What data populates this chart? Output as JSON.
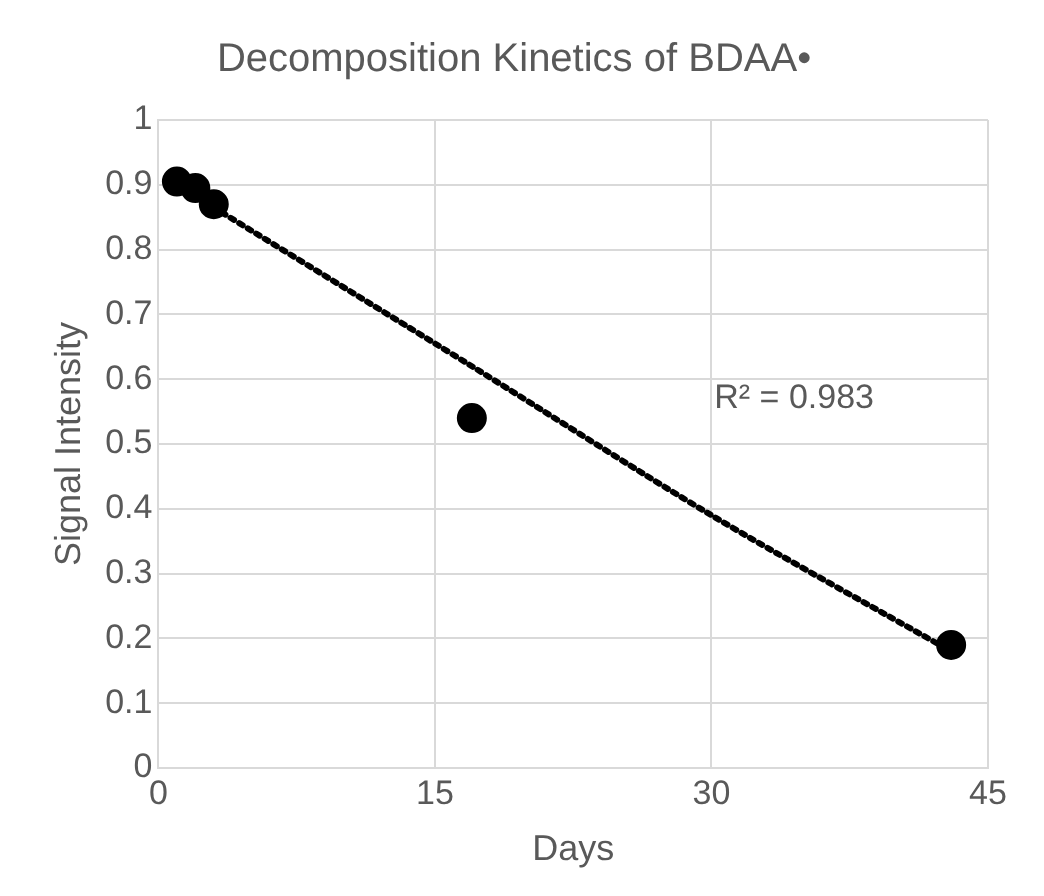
{
  "chart_data": {
    "type": "scatter",
    "title": "Decomposition Kinetics of BDAA•",
    "xlabel": "Days",
    "ylabel": "Signal Intensity",
    "xlim": [
      0,
      45
    ],
    "xticks": [
      0,
      15,
      30,
      45
    ],
    "ylim": [
      0,
      1
    ],
    "yticks": [
      0,
      0.1,
      0.2,
      0.3,
      0.4,
      0.5,
      0.6,
      0.7,
      0.8,
      0.9,
      1
    ],
    "grid": true,
    "legend": false,
    "marker": "circle",
    "series": [
      {
        "color": "#000000",
        "x": [
          1,
          2,
          3,
          17,
          43
        ],
        "values": [
          0.905,
          0.895,
          0.87,
          0.54,
          0.19
        ]
      },
      {
        "type": "line",
        "color": "#000000",
        "line_style": "dotted",
        "marker": "none",
        "x": [
          3,
          17,
          30,
          43
        ],
        "values": [
          0.865,
          0.62,
          0.39,
          0.18
        ]
      }
    ],
    "annotations": [
      "R² = 0.983"
    ]
  }
}
